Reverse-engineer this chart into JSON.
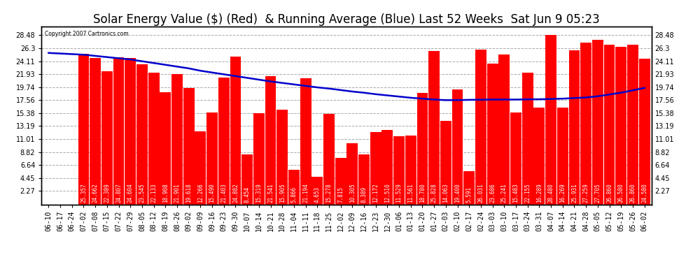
{
  "title": "Solar Energy Value ($) (Red)  & Running Average (Blue) Last 52 Weeks  Sat Jun 9 05:23",
  "copyright": "Copyright 2007 Cartronics.com",
  "bar_color": "#ff0000",
  "line_color": "#0000cc",
  "bg_color": "#ffffff",
  "grid_color": "#aaaaaa",
  "categories": [
    "06-10",
    "06-17",
    "06-24",
    "07-02",
    "07-08",
    "07-15",
    "07-22",
    "07-29",
    "08-05",
    "08-12",
    "08-19",
    "08-26",
    "09-02",
    "09-09",
    "09-16",
    "09-23",
    "09-30",
    "10-07",
    "10-14",
    "10-21",
    "10-28",
    "11-04",
    "11-11",
    "11-18",
    "11-25",
    "12-02",
    "12-09",
    "12-16",
    "12-23",
    "12-30",
    "01-06",
    "01-13",
    "01-20",
    "01-27",
    "02-03",
    "02-10",
    "02-17",
    "02-24",
    "03-03",
    "03-10",
    "03-17",
    "03-24",
    "03-31",
    "04-07",
    "04-14",
    "04-21",
    "04-28",
    "05-05",
    "05-12",
    "05-19",
    "05-26",
    "06-02"
  ],
  "bar_values": [
    0.0,
    0.0,
    0.0,
    25.357,
    24.662,
    22.389,
    24.807,
    24.604,
    23.545,
    22.133,
    18.908,
    21.901,
    19.618,
    12.266,
    15.49,
    21.403,
    24.882,
    8.454,
    15.319,
    21.541,
    15.905,
    5.866,
    21.194,
    4.653,
    15.278,
    7.815,
    10.305,
    8.389,
    12.172,
    12.51,
    11.529,
    11.561,
    18.78,
    25.828,
    14.063,
    19.4,
    5.591,
    26.031,
    23.686,
    25.241,
    15.483,
    22.155,
    16.289,
    28.48,
    16.269,
    25.931,
    27.259,
    27.705,
    26.86,
    26.58,
    26.86,
    24.58
  ],
  "running_avg": [
    25.5,
    25.4,
    25.3,
    25.2,
    25.0,
    24.8,
    24.6,
    24.4,
    24.1,
    23.8,
    23.5,
    23.2,
    22.9,
    22.5,
    22.2,
    21.9,
    21.6,
    21.3,
    21.0,
    20.7,
    20.45,
    20.2,
    19.95,
    19.7,
    19.5,
    19.25,
    19.0,
    18.8,
    18.55,
    18.35,
    18.15,
    17.95,
    17.8,
    17.65,
    17.55,
    17.55,
    17.6,
    17.62,
    17.65,
    17.65,
    17.65,
    17.68,
    17.7,
    17.75,
    17.8,
    17.9,
    18.0,
    18.2,
    18.5,
    18.8,
    19.2,
    19.6
  ],
  "yticks": [
    2.27,
    4.45,
    6.64,
    8.82,
    11.01,
    13.19,
    15.38,
    17.56,
    19.74,
    21.93,
    24.11,
    26.3,
    28.48
  ],
  "ylim": [
    0,
    30
  ],
  "title_fontsize": 12,
  "tick_fontsize": 7,
  "val_fontsize": 5.5
}
